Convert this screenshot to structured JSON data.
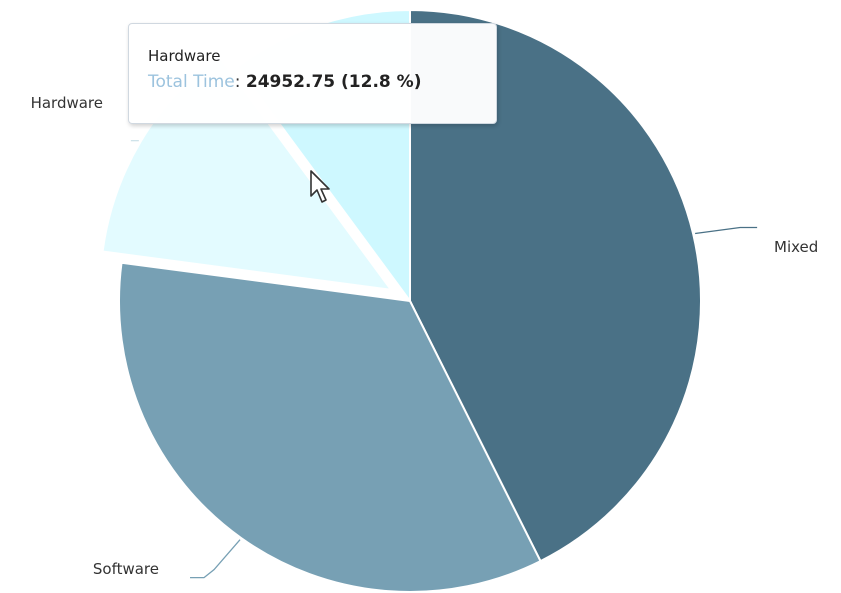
{
  "chart_data": {
    "type": "pie",
    "title": "",
    "slices": [
      {
        "name": "Mixed",
        "value": 42.6,
        "color": "#4a7186"
      },
      {
        "name": "Software",
        "value": 34.5,
        "color": "#77a0b4"
      },
      {
        "name": "Hardware",
        "value": 12.8,
        "color": "#e3fbff",
        "sliced": true
      },
      {
        "name": "",
        "value": 10.1,
        "color": "#cef8ff"
      }
    ]
  },
  "tooltip": {
    "title": "Hardware",
    "series_label": "Total Time",
    "separator": ":",
    "value": "24952.75 (12.8 %)"
  }
}
